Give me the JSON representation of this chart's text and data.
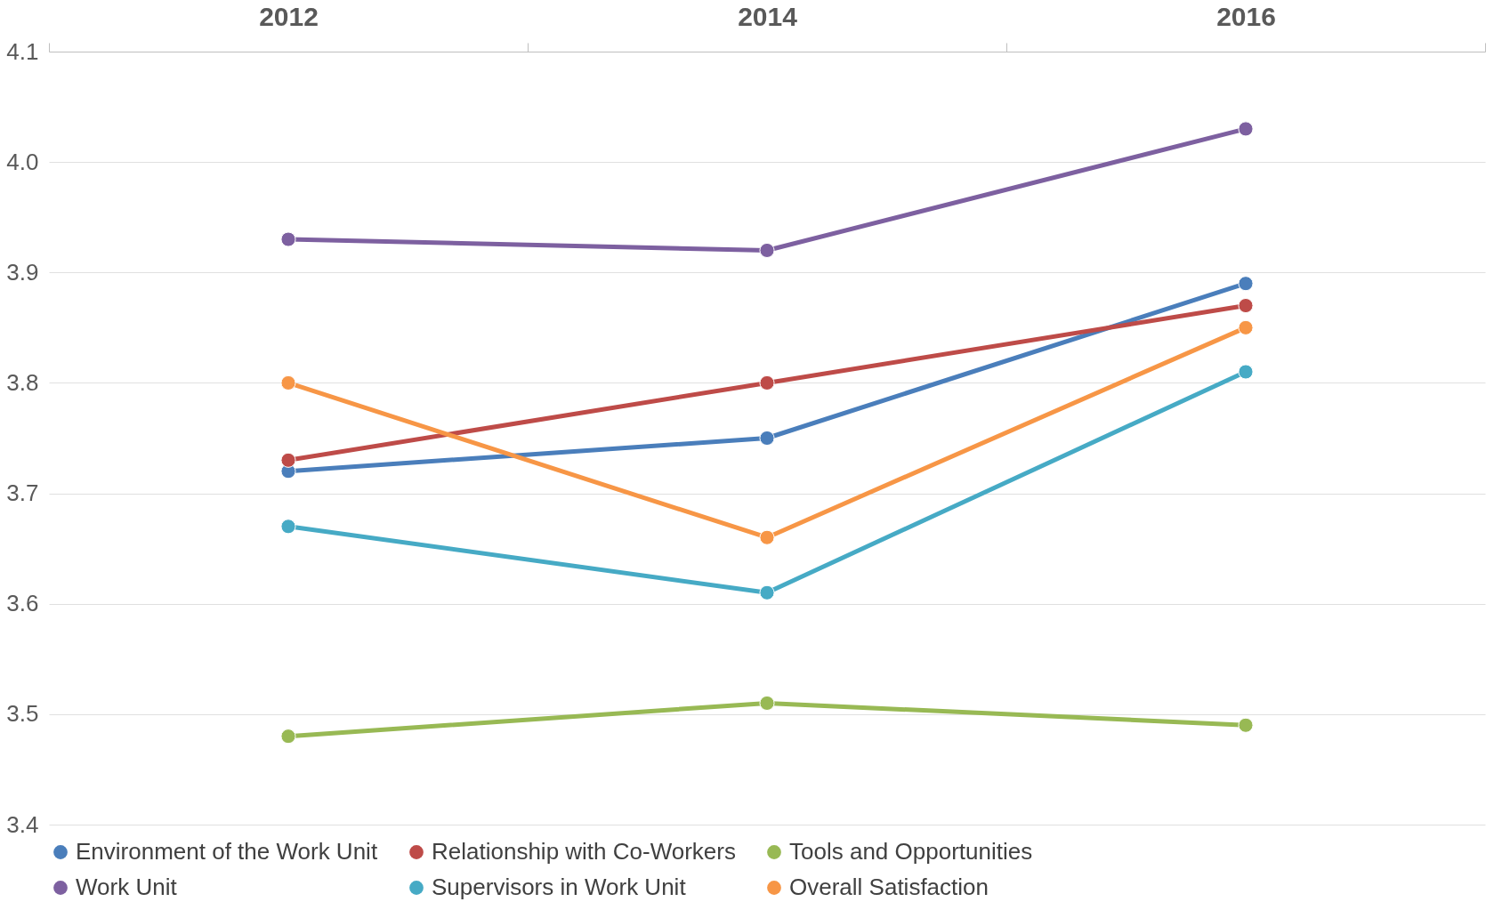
{
  "chart_data": {
    "type": "line",
    "categories": [
      "2012",
      "2014",
      "2016"
    ],
    "series": [
      {
        "name": "Environment of the Work Unit",
        "color": "#4a7ebb",
        "values": [
          3.72,
          3.75,
          3.89
        ]
      },
      {
        "name": "Relationship with Co-Workers",
        "color": "#be4b48",
        "values": [
          3.73,
          3.8,
          3.87
        ]
      },
      {
        "name": "Tools and Opportunities",
        "color": "#98b954",
        "values": [
          3.48,
          3.51,
          3.49
        ]
      },
      {
        "name": "Work Unit",
        "color": "#7d60a0",
        "values": [
          3.93,
          3.92,
          4.03
        ]
      },
      {
        "name": "Supervisors in Work Unit",
        "color": "#46aac5",
        "values": [
          3.67,
          3.61,
          3.81
        ]
      },
      {
        "name": "Overall Satisfaction",
        "color": "#f79646",
        "values": [
          3.8,
          3.66,
          3.85
        ]
      }
    ],
    "ylim": [
      3.4,
      4.1
    ],
    "yticks": [
      3.4,
      3.5,
      3.6,
      3.7,
      3.8,
      3.9,
      {
        "value": 4,
        "label": "4.0"
      },
      4.1
    ],
    "grid": "y",
    "legend": "bottom",
    "marker": "circle",
    "line_style": "solid"
  }
}
